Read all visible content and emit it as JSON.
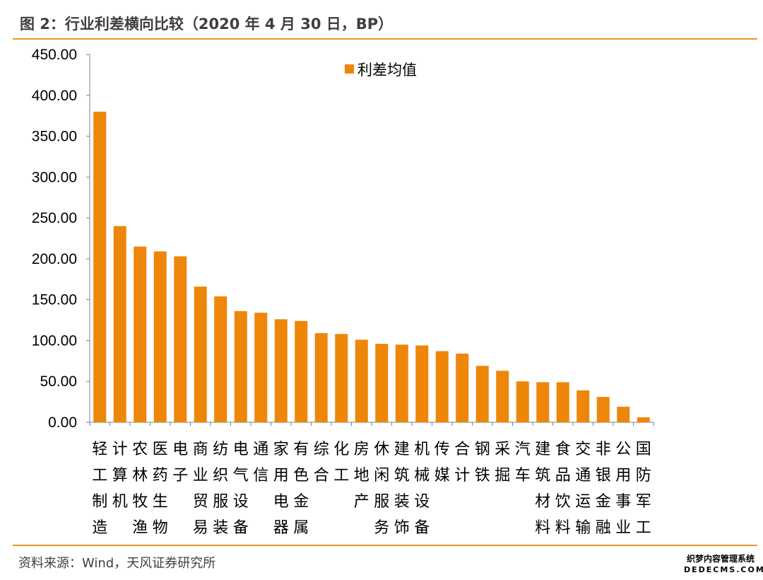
{
  "header": {
    "title": "图 2：行业利差横向比较（2020 年 4 月 30 日，BP）"
  },
  "footer": {
    "source": "资料来源：Wind，天风证券研究所",
    "watermark_line1": "织梦内容管理系统",
    "watermark_line2": "DEDECMS.COM"
  },
  "colors": {
    "bar": "#ee8609",
    "rule": "#e8962f"
  },
  "chart_data": {
    "type": "bar",
    "title": "",
    "xlabel": "",
    "ylabel": "",
    "ylim": [
      0,
      450
    ],
    "yticks": [
      0,
      50,
      100,
      150,
      200,
      250,
      300,
      350,
      400,
      450
    ],
    "ytick_labels": [
      "0.00",
      "50.00",
      "100.00",
      "150.00",
      "200.00",
      "250.00",
      "300.00",
      "350.00",
      "400.00",
      "450.00"
    ],
    "grid": false,
    "legend": "top-center",
    "categories": [
      "轻工制造",
      "计算机",
      "农林牧渔",
      "医药生物",
      "电子",
      "商业贸易",
      "纺织服装",
      "电气设备",
      "通信",
      "家用电器",
      "有色金属",
      "综合",
      "化工",
      "房地产",
      "休闲服务",
      "建筑装饰",
      "机械设备",
      "传媒",
      "合计",
      "钢铁",
      "采掘",
      "汽车",
      "建筑材料",
      "食品饮料",
      "交通运输",
      "非银金融",
      "公用事业",
      "国防军工"
    ],
    "series": [
      {
        "name": "利差均值",
        "values": [
          380,
          240,
          215,
          209,
          203,
          166,
          154,
          136,
          134,
          126,
          124,
          109,
          108,
          101,
          96,
          95,
          94,
          87,
          84,
          69,
          63,
          50,
          49,
          49,
          39,
          31,
          19,
          6
        ]
      }
    ]
  }
}
